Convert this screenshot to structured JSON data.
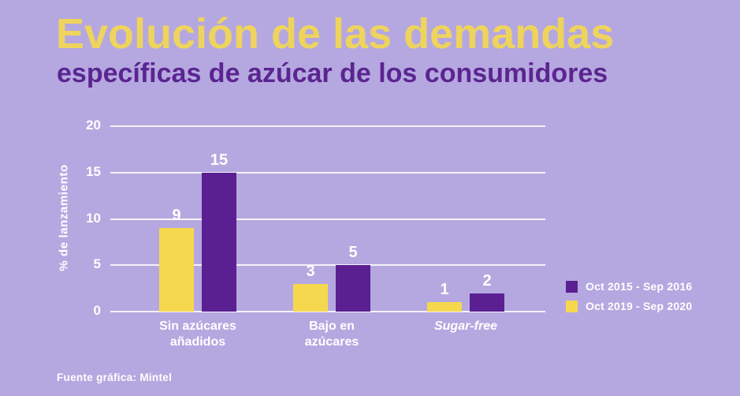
{
  "header": {
    "title": "Evolución de las demandas",
    "subtitle": "específicas de azúcar de los consumidores"
  },
  "footer": {
    "source": "Fuente gráfica: Mintel"
  },
  "colors": {
    "background": "#b5a8e0",
    "title_yellow": "#eed45c",
    "subtitle_purple": "#5b2591",
    "bar_purple": "#5a2092",
    "bar_yellow": "#f6d84e",
    "text_white": "#ffffff"
  },
  "chart_data": {
    "type": "bar",
    "title": "Evolución de las demandas específicas de azúcar de los consumidores",
    "xlabel": "",
    "ylabel": "% de lanzamiento",
    "ylim": [
      0,
      20
    ],
    "yticks": [
      0,
      5,
      10,
      15,
      20
    ],
    "grid": true,
    "legend_position": "right",
    "categories": [
      "Sin azúcares\nañadidos",
      "Bajo en\nazúcares",
      "Sugar-free"
    ],
    "categories_italic": [
      false,
      false,
      true
    ],
    "series": [
      {
        "name": "Oct 2015 - Sep 2016",
        "color": "#5a2092",
        "values": [
          15,
          5,
          2
        ]
      },
      {
        "name": "Oct 2019 - Sep 2020",
        "color": "#f6d84e",
        "values": [
          9,
          3,
          1
        ]
      }
    ],
    "bar_order_left_to_right": [
      "Oct 2019 - Sep 2020",
      "Oct 2015 - Sep 2016"
    ],
    "source": "Fuente gráfica: Mintel"
  }
}
